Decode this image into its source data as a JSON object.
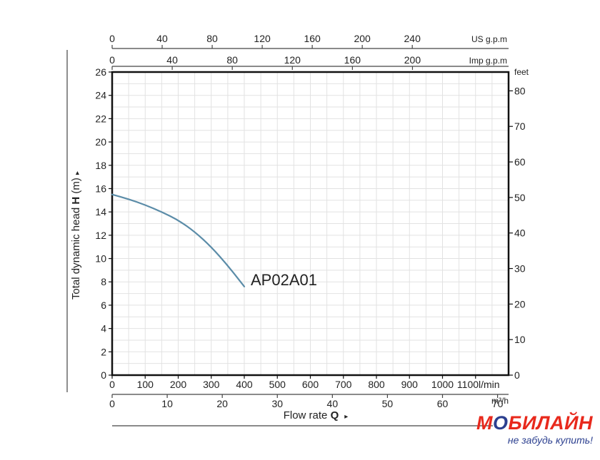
{
  "chart_data": {
    "type": "line",
    "series": [
      {
        "name": "AP02A01",
        "x": [
          0,
          50,
          100,
          150,
          200,
          250,
          300,
          350,
          400
        ],
        "y": [
          15.5,
          15.1,
          14.6,
          14.0,
          13.3,
          12.3,
          11.0,
          9.4,
          7.6
        ]
      }
    ],
    "series_color": "#5b8ca8",
    "axes": {
      "bottom_primary": {
        "ticks": [
          "0",
          "100",
          "200",
          "300",
          "400",
          "500",
          "600",
          "700",
          "800",
          "900",
          "1000",
          "1100"
        ],
        "unit": "l/min",
        "range": [
          0,
          1200
        ]
      },
      "bottom_secondary": {
        "ticks": [
          "0",
          "10",
          "20",
          "30",
          "40",
          "50",
          "60",
          "70"
        ],
        "unit": "m³/h",
        "range": [
          0,
          72
        ]
      },
      "top_us": {
        "ticks": [
          "0",
          "40",
          "80",
          "120",
          "160",
          "200",
          "240"
        ],
        "unit": "US g.p.m",
        "range": [
          0,
          317
        ]
      },
      "top_imp": {
        "ticks": [
          "0",
          "40",
          "80",
          "120",
          "160",
          "200"
        ],
        "unit": "Imp g.p.m",
        "range": [
          0,
          264
        ]
      },
      "left": {
        "ticks": [
          "0",
          "2",
          "4",
          "6",
          "8",
          "10",
          "12",
          "14",
          "16",
          "18",
          "20",
          "22",
          "24",
          "26"
        ],
        "range": [
          0,
          26
        ]
      },
      "right": {
        "ticks": [
          "0",
          "10",
          "20",
          "30",
          "40",
          "50",
          "60",
          "70",
          "80"
        ],
        "unit": "feet",
        "range": [
          0,
          85.3
        ]
      }
    },
    "xlabel": {
      "text": "Flow rate ",
      "bold": "Q",
      "arrow": "▸"
    },
    "ylabel": {
      "text": "Total dynamic head ",
      "bold": "H",
      "suffix": " (m) ",
      "arrow": "▸"
    },
    "grid": true
  },
  "brand": {
    "name_pre": "М",
    "name_accent": "О",
    "name_post": "БИЛАЙН",
    "slogan": "не забудь купить!"
  }
}
